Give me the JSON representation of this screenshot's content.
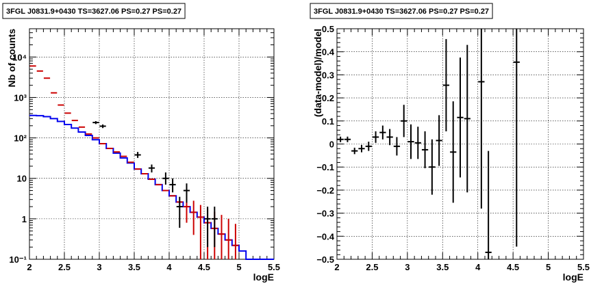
{
  "chart_data": [
    {
      "type": "line",
      "title": "3FGL J0831.9+0430 TS=3627.06 PS=0.27 PS=0.27",
      "xlabel": "logE",
      "ylabel": "Nb of counts",
      "xlim": [
        2,
        5.5
      ],
      "ylim": [
        0.1,
        50000
      ],
      "y_scale": "log",
      "grid": true,
      "x_ticks": [
        2,
        2.5,
        3,
        3.5,
        4,
        4.5,
        5,
        5.5
      ],
      "x_tick_labels": [
        "2",
        "2.5",
        "3",
        "3.5",
        "4",
        "4.5",
        "5",
        "5.5"
      ],
      "y_ticks": [
        0.1,
        1,
        10,
        100,
        1000,
        10000
      ],
      "y_tick_labels": [
        "10⁻¹",
        "1",
        "10",
        "10²",
        "10³",
        "10⁴"
      ],
      "series": [
        {
          "color": "#0000ee",
          "kind": "step",
          "x_edges": [
            2.0,
            2.1,
            2.2,
            2.3,
            2.4,
            2.5,
            2.6,
            2.7,
            2.8,
            2.9,
            3.0,
            3.1,
            3.2,
            3.3,
            3.4,
            3.5,
            3.6,
            3.7,
            3.8,
            3.9,
            4.0,
            4.1,
            4.2,
            4.3,
            4.4,
            4.5,
            4.6,
            4.7,
            4.8,
            4.9,
            5.0,
            5.1,
            5.2,
            5.3,
            5.4,
            5.5
          ],
          "values": [
            360,
            355,
            335,
            300,
            255,
            215,
            175,
            140,
            115,
            90,
            72,
            55,
            42,
            32,
            24,
            17,
            13,
            9.5,
            7,
            5,
            3.7,
            2.6,
            2.0,
            1.45,
            1.1,
            0.8,
            0.58,
            0.42,
            0.3,
            0.22,
            0.16,
            0.1,
            0.1,
            0.1,
            0.1
          ]
        },
        {
          "color": "#cc0000",
          "kind": "points",
          "x": [
            2.05,
            2.15,
            2.25,
            2.35,
            2.45,
            2.55,
            2.65,
            2.75,
            2.85,
            2.95,
            3.05,
            3.15,
            3.25,
            3.35,
            3.45,
            3.55,
            3.65,
            3.75,
            3.85,
            3.95,
            4.05,
            4.15,
            4.25,
            4.35,
            4.45,
            4.55,
            4.65,
            4.75,
            4.85,
            4.95
          ],
          "y": [
            6000,
            4500,
            3000,
            1300,
            650,
            410,
            270,
            185,
            125,
            100,
            72,
            55,
            45,
            35,
            25,
            17,
            13,
            9.5,
            7,
            5,
            3.7,
            2.6,
            2.0,
            1.45,
            1.1,
            0.8,
            0.58,
            0.42,
            0.3,
            0.22
          ],
          "y_low": [
            null,
            null,
            null,
            null,
            null,
            null,
            null,
            null,
            null,
            null,
            null,
            null,
            null,
            null,
            null,
            null,
            null,
            null,
            null,
            null,
            null,
            null,
            0.8,
            0.4,
            0.1,
            0.1,
            0.1,
            0.1,
            0.1,
            0.1
          ],
          "y_high": [
            null,
            null,
            null,
            null,
            null,
            null,
            null,
            null,
            null,
            null,
            null,
            null,
            null,
            null,
            null,
            null,
            null,
            null,
            null,
            null,
            null,
            null,
            3.5,
            2.8,
            2.2,
            1.8,
            1.5,
            1.25,
            1.0,
            0.75
          ]
        },
        {
          "color": "#000000",
          "kind": "points",
          "x": [
            2.95,
            3.05,
            3.55,
            3.75,
            3.95,
            4.05,
            4.15,
            4.25,
            4.55,
            4.65
          ],
          "y": [
            240,
            195,
            38,
            18,
            10,
            7,
            2,
            5,
            1,
            1
          ],
          "y_low": [
            220,
            175,
            32,
            14,
            7,
            4.5,
            0.6,
            2.5,
            0.2,
            0.2
          ],
          "y_high": [
            260,
            215,
            45,
            22,
            14,
            10,
            3.5,
            7.5,
            2,
            2
          ]
        }
      ]
    },
    {
      "type": "scatter",
      "title": "3FGL J0831.9+0430 TS=3627.06 PS=0.27 PS=0.27",
      "xlabel": "logE",
      "ylabel": "(data-model)/model",
      "xlim": [
        2,
        5.5
      ],
      "ylim": [
        -0.5,
        0.5
      ],
      "grid": true,
      "x_ticks": [
        2,
        2.5,
        3,
        3.5,
        4,
        4.5,
        5,
        5.5
      ],
      "x_tick_labels": [
        "2",
        "2.5",
        "3",
        "3.5",
        "4",
        "4.5",
        "5",
        "5.5"
      ],
      "y_ticks": [
        -0.5,
        -0.4,
        -0.3,
        -0.2,
        -0.1,
        0,
        0.1,
        0.2,
        0.3,
        0.4,
        0.5
      ],
      "y_tick_labels": [
        "−0.5",
        "−0.4",
        "−0.3",
        "−0.2",
        "−0.1",
        "0",
        "0.1",
        "0.2",
        "0.3",
        "0.4",
        "0.5"
      ],
      "series": [
        {
          "color": "#000000",
          "x": [
            2.05,
            2.15,
            2.25,
            2.35,
            2.45,
            2.55,
            2.65,
            2.75,
            2.85,
            2.95,
            3.05,
            3.15,
            3.25,
            3.35,
            3.45,
            3.55,
            3.65,
            3.75,
            3.85,
            4.05,
            4.15,
            4.55
          ],
          "y": [
            0.02,
            0.02,
            -0.03,
            -0.02,
            -0.01,
            0.03,
            0.05,
            0.03,
            -0.01,
            0.1,
            0.01,
            0.005,
            -0.025,
            -0.1,
            0.015,
            0.255,
            -0.035,
            0.115,
            0.11,
            0.27,
            -0.47,
            0.355
          ],
          "y_err": [
            0.012,
            0.012,
            0.014,
            0.016,
            0.02,
            0.025,
            0.03,
            0.035,
            0.04,
            0.07,
            0.075,
            0.07,
            0.08,
            0.12,
            0.11,
            0.2,
            0.22,
            0.26,
            0.32,
            0.55,
            0.44,
            0.8
          ]
        }
      ]
    }
  ]
}
